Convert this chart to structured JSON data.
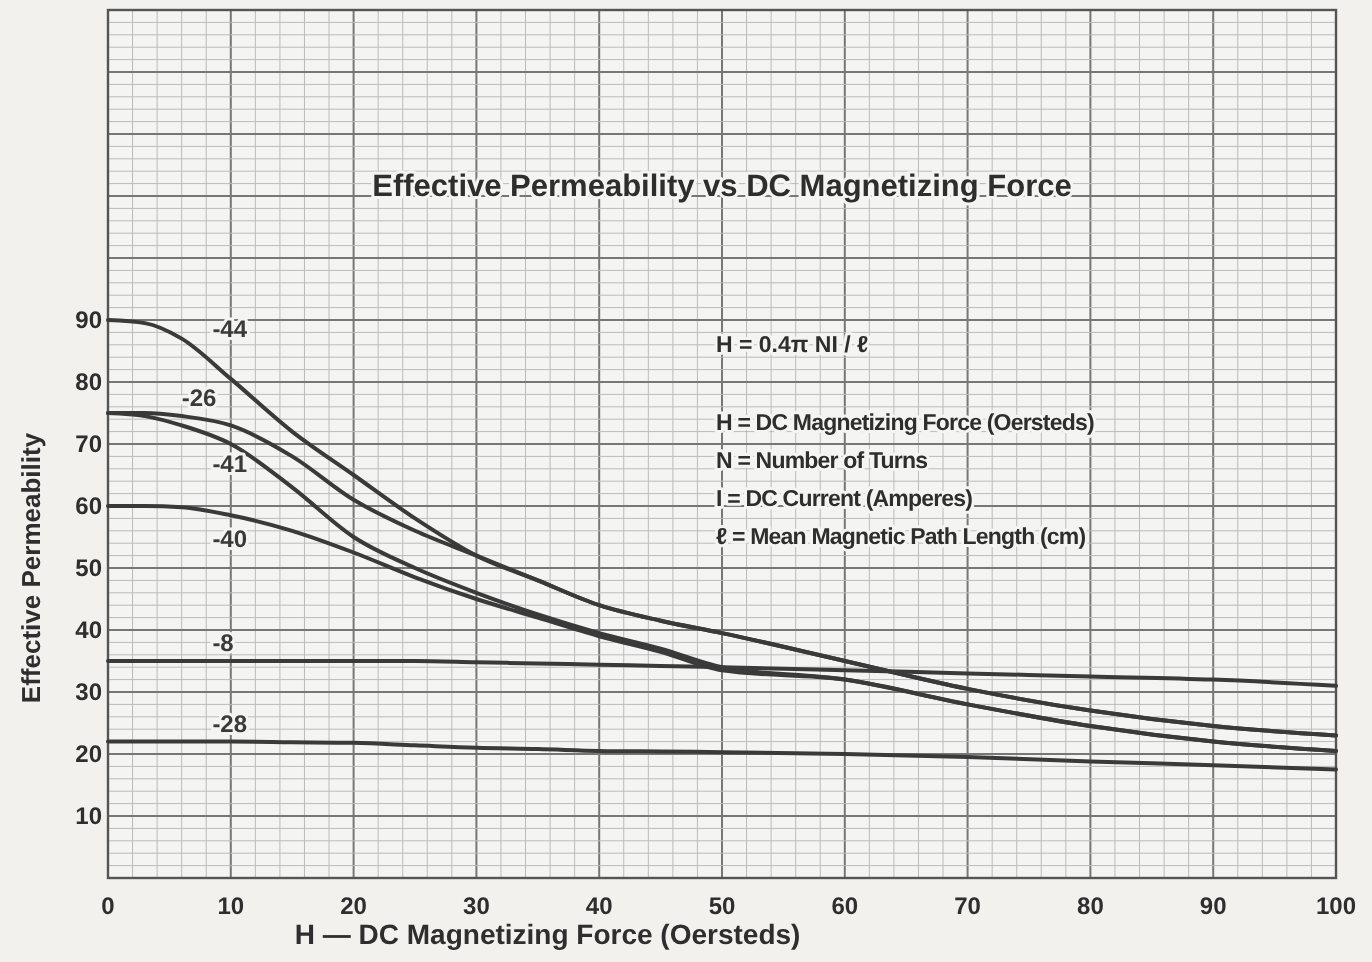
{
  "chart_data": {
    "type": "line",
    "title": "Effective Permeability vs DC Magnetizing Force",
    "xlabel": "H — DC Magnetizing Force (Oersteds)",
    "ylabel": "Effective Permeability",
    "annotations": [
      "H = 0.4π NI / ℓ",
      "H = DC Magnetizing Force (Oersteds)",
      "N = Number of Turns",
      "I = DC Current (Amperes)",
      "ℓ = Mean Magnetic Path Length (cm)"
    ],
    "xlim": [
      0,
      100
    ],
    "xticks": [
      0,
      10,
      20,
      30,
      40,
      50,
      60,
      70,
      80,
      90,
      100
    ],
    "ylim": [
      0,
      140
    ],
    "yticks": [
      {
        "value": 0,
        "label": null
      },
      10,
      20,
      30,
      40,
      50,
      60,
      70,
      80,
      90,
      {
        "value": 100,
        "label": null
      },
      {
        "value": 110,
        "label": null
      },
      {
        "value": 120,
        "label": null
      },
      {
        "value": 130,
        "label": null
      },
      {
        "value": 140,
        "label": null
      }
    ],
    "grid": true,
    "marker": "none",
    "line_style": "solid",
    "x": [
      0,
      3,
      6,
      10,
      15,
      20,
      25,
      30,
      35,
      40,
      45,
      50,
      60,
      70,
      80,
      90,
      100
    ],
    "series": [
      {
        "name": "-44",
        "color": "#3a3a3a",
        "values": [
          90,
          89.5,
          87,
          80.5,
          72,
          65,
          58,
          52,
          48,
          44,
          41.5,
          39.5,
          35,
          30.5,
          27,
          24.5,
          23
        ]
      },
      {
        "name": "-26",
        "color": "#3a3a3a",
        "values": [
          75,
          75,
          74.5,
          73,
          68,
          61,
          56,
          52,
          48,
          44,
          41.5,
          39.5,
          35,
          30.5,
          27,
          24.5,
          23
        ]
      },
      {
        "name": "-41",
        "color": "#3a3a3a",
        "values": [
          75,
          74.5,
          73,
          70,
          63,
          55,
          50,
          46,
          42.5,
          39.5,
          37,
          34,
          32,
          28,
          24.5,
          22,
          20.5
        ]
      },
      {
        "name": "-40",
        "color": "#3a3a3a",
        "values": [
          60,
          60,
          59.8,
          58.5,
          56,
          52.5,
          48.5,
          45,
          42,
          39,
          36.5,
          33.5,
          32,
          28,
          24.5,
          22,
          20.5
        ]
      },
      {
        "name": "-8",
        "color": "#3a3a3a",
        "values": [
          35,
          35,
          35,
          35,
          35,
          35,
          35,
          34.8,
          34.6,
          34.4,
          34.2,
          34,
          33.5,
          33,
          32.5,
          32,
          31
        ]
      },
      {
        "name": "-28",
        "color": "#3a3a3a",
        "values": [
          22,
          22,
          22,
          22,
          21.9,
          21.8,
          21.4,
          21,
          20.8,
          20.5,
          20.4,
          20.3,
          20,
          19.5,
          18.8,
          18.2,
          17.5
        ]
      }
    ]
  }
}
